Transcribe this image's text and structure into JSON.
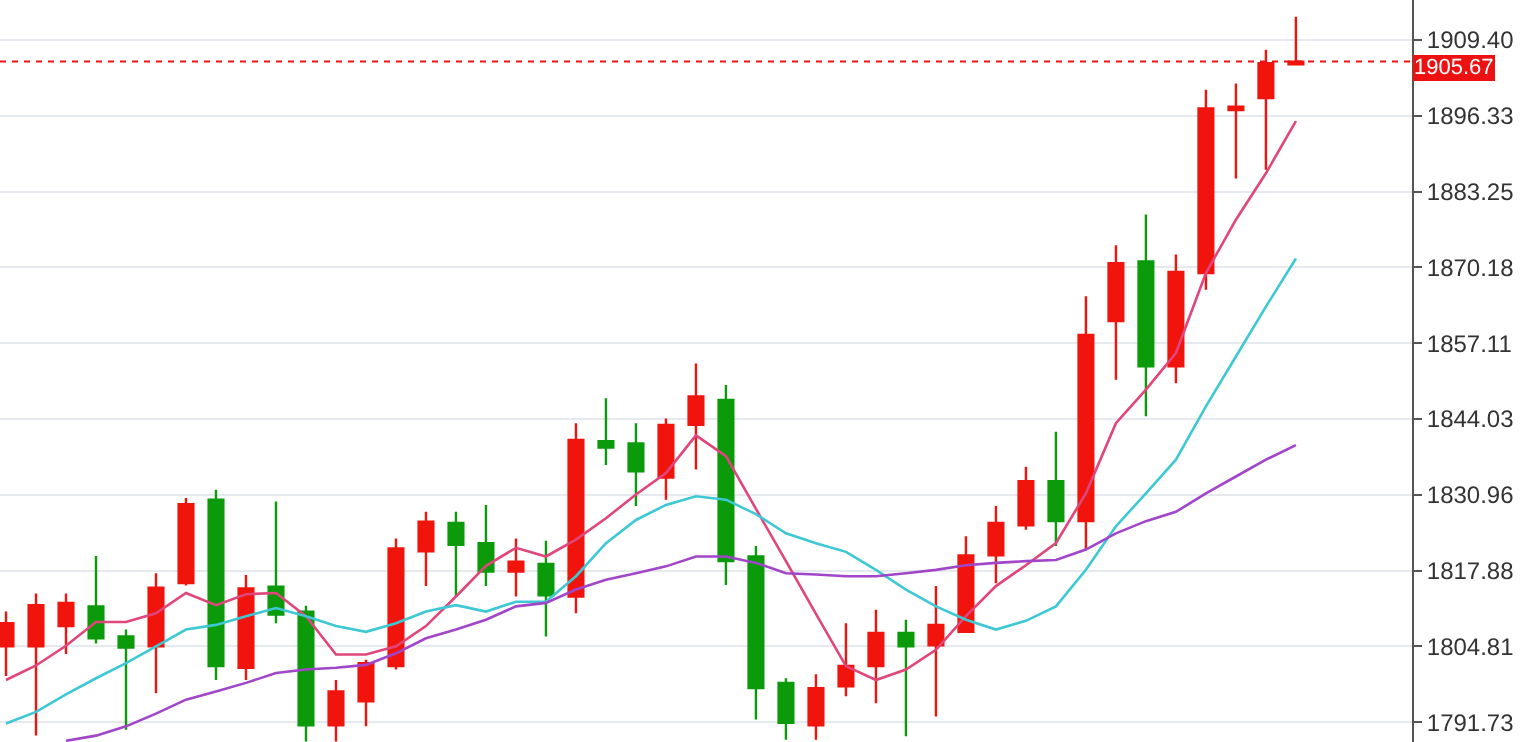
{
  "chart_data": {
    "type": "candlestick",
    "categories": [
      null,
      null,
      null,
      null,
      null,
      null,
      null,
      null,
      null,
      null,
      null,
      null,
      null,
      null,
      null,
      null,
      null,
      null,
      null,
      null,
      null,
      null,
      null,
      null,
      null,
      null,
      null,
      null,
      null,
      null,
      null,
      null,
      null,
      null,
      null,
      null,
      null,
      null,
      null,
      null,
      null,
      null,
      null,
      null
    ],
    "ohlc": [
      [
        1804.8,
        1810.8,
        1799.7,
        1808.8
      ],
      [
        1804.8,
        1813.9,
        1789.4,
        1811.9
      ],
      [
        1808.3,
        1813.9,
        1803.5,
        1812.3
      ],
      [
        1811.7,
        1820.4,
        1805.3,
        1806.2
      ],
      [
        1806.5,
        1807.7,
        1790.4,
        1804.6
      ],
      [
        1804.8,
        1817.4,
        1796.7,
        1814.9
      ],
      [
        1815.7,
        1830.4,
        1815.3,
        1829.3
      ],
      [
        1830.1,
        1831.8,
        1799.0,
        1801.4
      ],
      [
        1801.1,
        1817.1,
        1799.0,
        1814.8
      ],
      [
        1815.1,
        1829.8,
        1808.8,
        1810.3
      ],
      [
        1810.8,
        1811.8,
        1788.4,
        1791.2
      ],
      [
        1791.2,
        1799.0,
        1788.4,
        1797.0
      ],
      [
        1795.3,
        1802.5,
        1791.0,
        1801.9
      ],
      [
        1801.4,
        1823.4,
        1800.8,
        1821.7
      ],
      [
        1821.2,
        1828.0,
        1815.2,
        1826.3
      ],
      [
        1826.1,
        1828.0,
        1813.4,
        1822.3
      ],
      [
        1822.6,
        1829.2,
        1815.2,
        1817.7
      ],
      [
        1817.7,
        1823.4,
        1813.4,
        1819.4
      ],
      [
        1819.0,
        1823.0,
        1806.5,
        1813.6
      ],
      [
        1813.4,
        1843.3,
        1810.5,
        1840.4
      ],
      [
        1840.2,
        1847.6,
        1836.1,
        1839.1
      ],
      [
        1839.8,
        1843.3,
        1829.0,
        1835.0
      ],
      [
        1833.9,
        1844.1,
        1830.1,
        1843.0
      ],
      [
        1843.0,
        1853.6,
        1835.3,
        1847.9
      ],
      [
        1847.3,
        1849.9,
        1815.4,
        1819.5
      ],
      [
        1820.3,
        1822.1,
        1792.2,
        1797.6
      ],
      [
        1798.5,
        1799.3,
        1788.7,
        1791.6
      ],
      [
        1791.2,
        1800.0,
        1788.7,
        1797.6
      ],
      [
        1797.9,
        1808.8,
        1796.2,
        1801.4
      ],
      [
        1801.4,
        1811.1,
        1795.0,
        1807.1
      ],
      [
        1807.1,
        1809.4,
        1789.3,
        1804.8
      ],
      [
        1805.0,
        1815.2,
        1792.7,
        1808.5
      ],
      [
        1807.3,
        1823.8,
        1807.1,
        1820.5
      ],
      [
        1820.5,
        1829.0,
        1815.7,
        1826.1
      ],
      [
        1825.7,
        1835.8,
        1824.9,
        1833.3
      ],
      [
        1833.3,
        1841.8,
        1822.1,
        1826.4
      ],
      [
        1826.4,
        1865.2,
        1821.5,
        1858.5
      ],
      [
        1860.9,
        1874.0,
        1850.8,
        1870.9
      ],
      [
        1871.2,
        1879.3,
        1844.5,
        1853.1
      ],
      [
        1853.1,
        1872.4,
        1850.2,
        1869.4
      ],
      [
        1869.2,
        1900.8,
        1866.3,
        1897.6
      ],
      [
        1897.3,
        1901.9,
        1885.5,
        1897.9
      ],
      [
        1899.4,
        1907.7,
        1887.0,
        1905.4
      ],
      [
        1905.2,
        1913.4,
        1905.2,
        1905.67
      ]
    ],
    "colors": [
      "#f0140c",
      "#f0140c",
      "#f0140c",
      "#0a9a0a",
      "#0a9a0a",
      "#f0140c",
      "#f0140c",
      "#0a9a0a",
      "#f0140c",
      "#0a9a0a",
      "#0a9a0a",
      "#f0140c",
      "#f0140c",
      "#f0140c",
      "#f0140c",
      "#0a9a0a",
      "#0a9a0a",
      "#f0140c",
      "#0a9a0a",
      "#f0140c",
      "#0a9a0a",
      "#0a9a0a",
      "#f0140c",
      "#f0140c",
      "#0a9a0a",
      "#0a9a0a",
      "#0a9a0a",
      "#f0140c",
      "#f0140c",
      "#f0140c",
      "#0a9a0a",
      "#f0140c",
      "#f0140c",
      "#f0140c",
      "#f0140c",
      "#0a9a0a",
      "#f0140c",
      "#f0140c",
      "#0a9a0a",
      "#f0140c",
      "#f0140c",
      "#f0140c",
      "#f0140c",
      "#f0140c"
    ],
    "series": [
      {
        "type": "line",
        "color": "#e0457b",
        "values": [
          1799.0,
          1801.5,
          1804.9,
          1809.0,
          1809.0,
          1810.5,
          1814.0,
          1811.9,
          1813.8,
          1814.0,
          1810.0,
          1803.4,
          1803.4,
          1804.8,
          1808.3,
          1813.4,
          1818.7,
          1821.8,
          1820.3,
          1823.2,
          1826.9,
          1831.0,
          1834.7,
          1841.2,
          1837.6,
          1828.5,
          1819.5,
          1810.4,
          1801.4,
          1799.0,
          1800.8,
          1804.2,
          1810.0,
          1815.2,
          1818.8,
          1822.6,
          1831.2,
          1843.3,
          1849.1,
          1855.4,
          1869.2,
          1878.4,
          1886.4,
          1895.4
        ]
      },
      {
        "type": "line",
        "color": "#3ec8d4",
        "values": [
          1791.5,
          1793.5,
          1796.5,
          1799.3,
          1801.9,
          1804.8,
          1807.7,
          1808.5,
          1810.0,
          1811.4,
          1810.0,
          1808.3,
          1807.3,
          1808.8,
          1810.8,
          1811.9,
          1810.8,
          1812.5,
          1812.5,
          1816.9,
          1822.6,
          1826.6,
          1829.2,
          1830.7,
          1830.1,
          1827.6,
          1824.3,
          1822.6,
          1821.1,
          1818.0,
          1814.6,
          1811.7,
          1809.4,
          1807.7,
          1809.2,
          1811.7,
          1818.0,
          1825.5,
          1831.2,
          1837.0,
          1846.2,
          1854.8,
          1863.4,
          1871.7
        ]
      },
      {
        "type": "line",
        "color": "#a146c8",
        "values": [
          null,
          null,
          1788.5,
          1789.4,
          1791.0,
          1793.2,
          1795.6,
          1797.0,
          1798.5,
          1800.2,
          1800.8,
          1801.1,
          1801.6,
          1803.6,
          1806.2,
          1807.7,
          1809.4,
          1811.7,
          1812.3,
          1814.6,
          1816.3,
          1817.4,
          1818.6,
          1820.3,
          1820.3,
          1819.2,
          1817.4,
          1817.2,
          1816.9,
          1816.9,
          1817.4,
          1818.0,
          1818.8,
          1819.2,
          1819.5,
          1819.7,
          1821.5,
          1824.3,
          1826.4,
          1828.0,
          1831.2,
          1834.1,
          1837.0,
          1839.5
        ]
      }
    ],
    "ylim": [
      1788.3,
      1916.3
    ],
    "yticks": [
      1791.73,
      1804.81,
      1817.88,
      1830.96,
      1844.03,
      1857.11,
      1870.18,
      1883.25,
      1896.33,
      {
        "value": 1909.4,
        "label": "1909.40"
      }
    ],
    "ref_lines": [
      {
        "axis": "y",
        "value": 1905.67,
        "label": "1905.67",
        "color": "#ee1111",
        "line_style": "dotted"
      }
    ],
    "grid": "y",
    "tick_labels": "y"
  }
}
